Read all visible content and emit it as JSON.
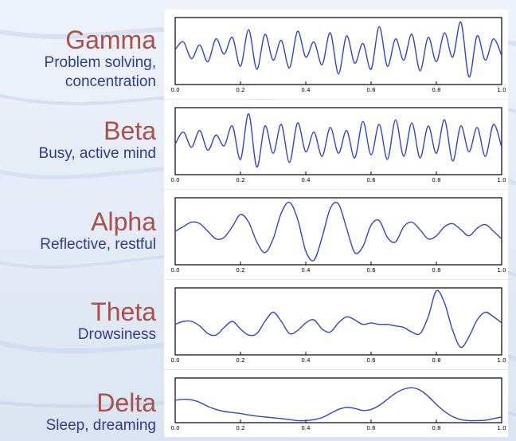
{
  "colors": {
    "band_name": "#a8504a",
    "band_desc": "#2f3f86",
    "trace": "#2e46c8",
    "panel_bg": "#ffffff",
    "frame": "#000000",
    "background": "#e6ecf6"
  },
  "bands": [
    {
      "name": "Gamma",
      "description": [
        "Problem solving,",
        "concentration"
      ]
    },
    {
      "name": "Beta",
      "description": [
        "Busy, active mind"
      ]
    },
    {
      "name": "Alpha",
      "description": [
        "Reflective, restful"
      ]
    },
    {
      "name": "Theta",
      "description": [
        "Drowsiness"
      ]
    },
    {
      "name": "Delta",
      "description": [
        "Sleep, dreaming"
      ]
    }
  ],
  "chart_data": [
    {
      "type": "line",
      "band": "Gamma",
      "xlim": [
        0,
        1
      ],
      "xticks": [
        "0.0",
        "0.2",
        "0.4",
        "0.6",
        "0.8",
        "1.0"
      ],
      "yticks": [],
      "grid": false,
      "x": [
        0.0,
        0.025,
        0.05,
        0.075,
        0.1,
        0.125,
        0.15,
        0.175,
        0.2,
        0.225,
        0.25,
        0.275,
        0.3,
        0.325,
        0.35,
        0.375,
        0.4,
        0.425,
        0.45,
        0.475,
        0.5,
        0.525,
        0.55,
        0.575,
        0.6,
        0.625,
        0.65,
        0.675,
        0.7,
        0.725,
        0.75,
        0.775,
        0.8,
        0.825,
        0.85,
        0.875,
        0.9,
        0.925,
        0.95,
        0.975,
        1.0
      ],
      "y": [
        0.05,
        0.3,
        -0.25,
        0.2,
        -0.35,
        0.4,
        -0.1,
        0.45,
        -0.5,
        0.7,
        -0.6,
        0.55,
        -0.3,
        0.35,
        -0.55,
        0.65,
        -0.2,
        0.3,
        -0.45,
        0.6,
        -0.75,
        0.5,
        -0.4,
        0.25,
        -0.6,
        0.8,
        -0.5,
        0.4,
        -0.3,
        0.55,
        -0.65,
        0.45,
        -0.35,
        0.6,
        -0.2,
        0.95,
        -0.85,
        0.5,
        -0.3,
        0.4,
        -0.15
      ],
      "ylim": [
        -1.1,
        1.1
      ]
    },
    {
      "type": "line",
      "band": "Beta",
      "xlim": [
        0,
        1
      ],
      "xticks": [
        "0.0",
        "0.2",
        "0.4",
        "0.6",
        "0.8",
        "1.0"
      ],
      "yticks": [],
      "grid": false,
      "x": [
        0.0,
        0.025,
        0.05,
        0.075,
        0.1,
        0.125,
        0.15,
        0.175,
        0.2,
        0.225,
        0.25,
        0.275,
        0.3,
        0.325,
        0.35,
        0.375,
        0.4,
        0.425,
        0.45,
        0.475,
        0.5,
        0.525,
        0.55,
        0.575,
        0.6,
        0.625,
        0.65,
        0.675,
        0.7,
        0.725,
        0.75,
        0.775,
        0.8,
        0.825,
        0.85,
        0.875,
        0.9,
        0.925,
        0.95,
        0.975,
        1.0
      ],
      "y": [
        -0.1,
        0.3,
        -0.2,
        0.35,
        -0.3,
        0.2,
        -0.15,
        0.5,
        -0.6,
        0.9,
        -0.85,
        0.5,
        -0.4,
        0.55,
        -0.7,
        0.6,
        -0.35,
        0.3,
        -0.5,
        0.45,
        -0.4,
        0.35,
        -0.55,
        0.65,
        -0.45,
        0.55,
        -0.6,
        0.7,
        -0.5,
        0.6,
        -0.55,
        0.5,
        -0.4,
        0.7,
        -0.65,
        0.5,
        -0.35,
        0.45,
        -0.5,
        0.55,
        -0.2
      ],
      "ylim": [
        -1.1,
        1.1
      ]
    },
    {
      "type": "line",
      "band": "Alpha",
      "xlim": [
        0,
        1
      ],
      "xticks": [
        "0.0",
        "0.2",
        "0.4",
        "0.6",
        "0.8",
        "1.0"
      ],
      "yticks": [],
      "grid": false,
      "x": [
        0.0,
        0.025,
        0.05,
        0.075,
        0.1,
        0.125,
        0.15,
        0.175,
        0.2,
        0.225,
        0.25,
        0.275,
        0.3,
        0.325,
        0.35,
        0.375,
        0.4,
        0.425,
        0.45,
        0.475,
        0.5,
        0.525,
        0.55,
        0.575,
        0.6,
        0.625,
        0.65,
        0.675,
        0.7,
        0.725,
        0.75,
        0.775,
        0.8,
        0.825,
        0.85,
        0.875,
        0.9,
        0.925,
        0.95,
        0.975,
        1.0
      ],
      "y": [
        0.0,
        0.15,
        0.3,
        0.25,
        0.0,
        -0.25,
        -0.2,
        0.15,
        0.55,
        0.3,
        -0.35,
        -0.7,
        -0.25,
        0.6,
        0.95,
        0.4,
        -0.65,
        -0.95,
        -0.2,
        0.75,
        0.9,
        0.1,
        -0.7,
        -0.5,
        0.2,
        0.35,
        -0.2,
        -0.35,
        0.15,
        0.3,
        0.05,
        -0.25,
        -0.15,
        0.15,
        0.25,
        0.05,
        -0.15,
        0.1,
        0.22,
        0.0,
        -0.25
      ],
      "ylim": [
        -1.1,
        1.1
      ]
    },
    {
      "type": "line",
      "band": "Theta",
      "xlim": [
        0,
        1
      ],
      "xticks": [
        "0.0",
        "0.2",
        "0.4",
        "0.6",
        "0.8",
        "1.0"
      ],
      "yticks": [],
      "grid": false,
      "x": [
        0.0,
        0.025,
        0.05,
        0.075,
        0.1,
        0.125,
        0.15,
        0.175,
        0.2,
        0.225,
        0.25,
        0.275,
        0.3,
        0.325,
        0.35,
        0.375,
        0.4,
        0.425,
        0.45,
        0.475,
        0.5,
        0.525,
        0.55,
        0.575,
        0.6,
        0.625,
        0.65,
        0.675,
        0.7,
        0.725,
        0.75,
        0.775,
        0.8,
        0.825,
        0.85,
        0.875,
        0.9,
        0.925,
        0.95,
        0.975,
        1.0
      ],
      "y": [
        -0.1,
        0.0,
        0.0,
        -0.15,
        -0.4,
        -0.45,
        -0.2,
        0.0,
        -0.25,
        -0.45,
        -0.4,
        0.0,
        0.3,
        0.0,
        -0.4,
        -0.3,
        -0.05,
        0.05,
        -0.25,
        -0.35,
        -0.05,
        0.15,
        0.05,
        -0.1,
        -0.05,
        -0.1,
        -0.1,
        -0.15,
        -0.2,
        -0.35,
        -0.4,
        0.15,
        1.0,
        0.6,
        -0.3,
        -0.85,
        -0.5,
        0.05,
        0.3,
        0.15,
        -0.05
      ],
      "ylim": [
        -1.1,
        1.1
      ]
    },
    {
      "type": "line",
      "band": "Delta",
      "xlim": [
        0,
        1
      ],
      "xticks": [
        "0.0",
        "0.2",
        "0.4",
        "0.6",
        "0.8",
        "1.0"
      ],
      "yticks": [],
      "grid": false,
      "x": [
        0.0,
        0.025,
        0.05,
        0.075,
        0.1,
        0.125,
        0.15,
        0.175,
        0.2,
        0.225,
        0.25,
        0.275,
        0.3,
        0.325,
        0.35,
        0.375,
        0.4,
        0.425,
        0.45,
        0.475,
        0.5,
        0.525,
        0.55,
        0.575,
        0.6,
        0.625,
        0.65,
        0.675,
        0.7,
        0.725,
        0.75,
        0.775,
        0.8,
        0.825,
        0.85,
        0.875,
        0.9,
        0.925,
        0.95,
        0.975,
        1.0
      ],
      "y": [
        0.0,
        0.05,
        0.02,
        -0.1,
        -0.3,
        -0.45,
        -0.55,
        -0.6,
        -0.65,
        -0.72,
        -0.78,
        -0.82,
        -0.86,
        -0.9,
        -0.95,
        -1.0,
        -1.0,
        -0.95,
        -0.85,
        -0.65,
        -0.45,
        -0.35,
        -0.4,
        -0.5,
        -0.45,
        -0.25,
        0.05,
        0.35,
        0.55,
        0.62,
        0.5,
        0.2,
        -0.2,
        -0.55,
        -0.8,
        -0.95,
        -1.0,
        -1.0,
        -0.98,
        -0.9,
        -0.82
      ],
      "ylim": [
        -1.1,
        1.1
      ]
    }
  ]
}
